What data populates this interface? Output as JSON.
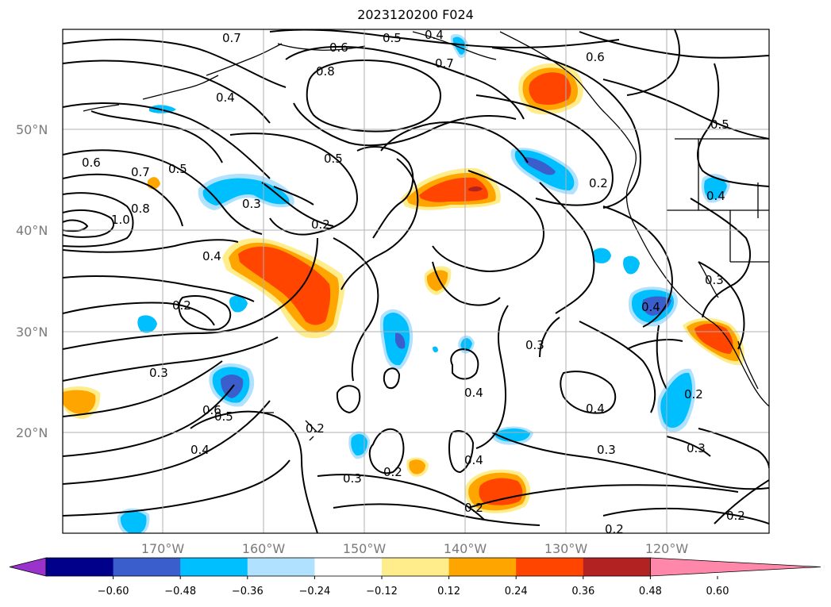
{
  "title": "2023120200 F024",
  "lat_labels": [
    "50°N",
    "40°N",
    "30°N",
    "20°N"
  ],
  "lon_labels": [
    "170°W",
    "160°W",
    "150°W",
    "140°W",
    "130°W",
    "120°W"
  ],
  "contour_labels": [
    "0.7",
    "0.5",
    "0.4",
    "0.6",
    "0.8",
    "0.7",
    "0.6",
    "0.4",
    "0.5",
    "0.6",
    "0.7",
    "0.5",
    "0.5",
    "0.8",
    "1.0",
    "0.3",
    "0.2",
    "0.4",
    "0.4",
    "0.2",
    "0.3",
    "0.3",
    "0.4",
    "0.3",
    "0.4",
    "0.5",
    "0.6",
    "0.2",
    "0.4",
    "0.2",
    "0.3",
    "0.2",
    "0.4",
    "0.2",
    "0.4",
    "0.3",
    "0.3",
    "0.2",
    "0.2",
    "0.2"
  ],
  "colorbar": {
    "ticks": [
      "−0.60",
      "−0.48",
      "−0.36",
      "−0.24",
      "−0.12",
      "0.12",
      "0.24",
      "0.36",
      "0.48",
      "0.60"
    ],
    "colors": [
      "#9933cc",
      "#00008b",
      "#3a5fcd",
      "#00bfff",
      "#b0e2ff",
      "#ffffff",
      "#ffec8b",
      "#ffa500",
      "#ff4500",
      "#b22222",
      "#ff88aa"
    ]
  },
  "colors": {
    "contour": "#000000",
    "grid": "#b0b0b0",
    "coast": "#000000"
  }
}
